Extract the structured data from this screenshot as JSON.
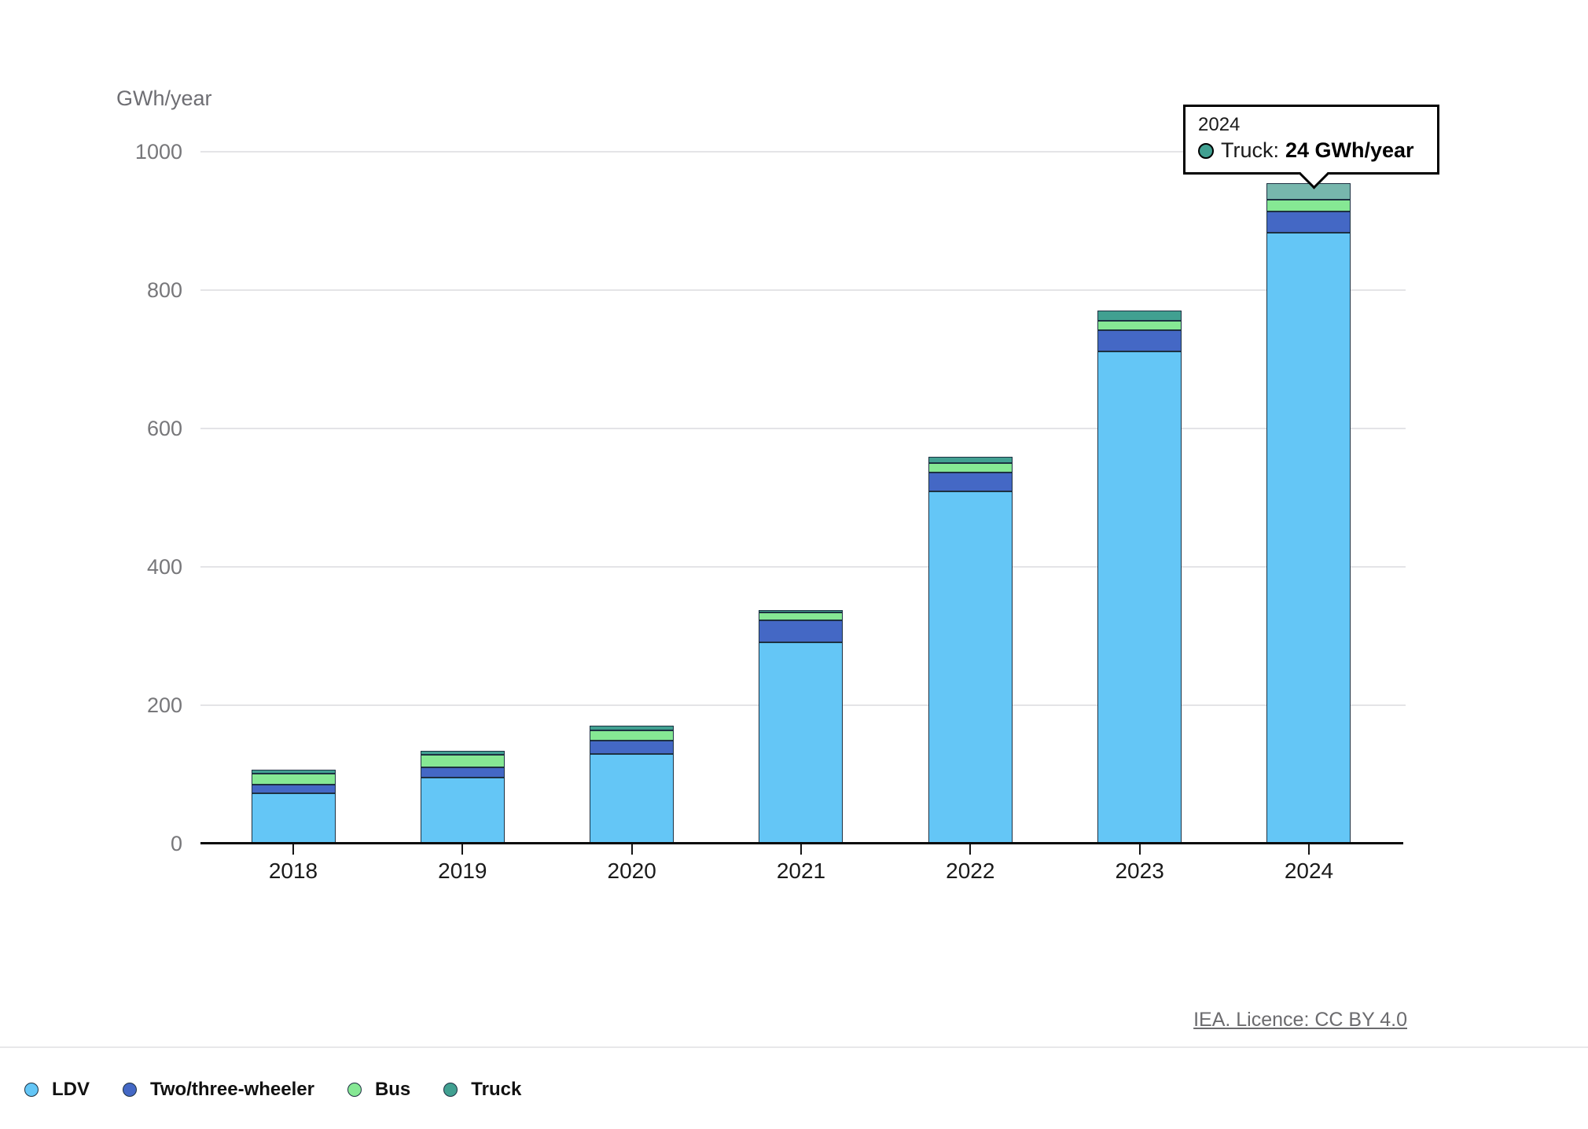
{
  "chart_data": {
    "type": "bar",
    "stacked": true,
    "ylabel": "GWh/year",
    "categories": [
      "2018",
      "2019",
      "2020",
      "2021",
      "2022",
      "2023",
      "2024"
    ],
    "series": [
      {
        "name": "LDV",
        "color": "#64C6F6",
        "values": [
          73,
          95,
          130,
          291,
          509,
          711,
          883
        ]
      },
      {
        "name": "Two/three-wheeler",
        "color": "#4468C5",
        "values": [
          12,
          15,
          19,
          32,
          27,
          31,
          31
        ]
      },
      {
        "name": "Bus",
        "color": "#86E894",
        "values": [
          16,
          18,
          15,
          11,
          14,
          14,
          17
        ]
      },
      {
        "name": "Truck",
        "color": "#41A091",
        "values": [
          6,
          6,
          6,
          4,
          9,
          14,
          24
        ]
      }
    ],
    "ylim": [
      0,
      1000
    ],
    "yticks": [
      0,
      200,
      400,
      600,
      800,
      1000
    ],
    "grid": true,
    "legend_position": "bottom",
    "highlight": {
      "category": "2024",
      "series": "Truck",
      "color": "#77B7AD"
    }
  },
  "tooltip": {
    "year": "2024",
    "label": "Truck:",
    "value": "24 GWh/year",
    "marker_color": "#41A091"
  },
  "footer": {
    "attribution": "IEA. Licence: CC BY 4.0"
  },
  "colors": {
    "grid": "#E4E4E7",
    "axis": "#0A0A0A",
    "segment_border": "#1D3142",
    "y_tick_label": "#77777A",
    "x_label": "#1A1A1A"
  }
}
